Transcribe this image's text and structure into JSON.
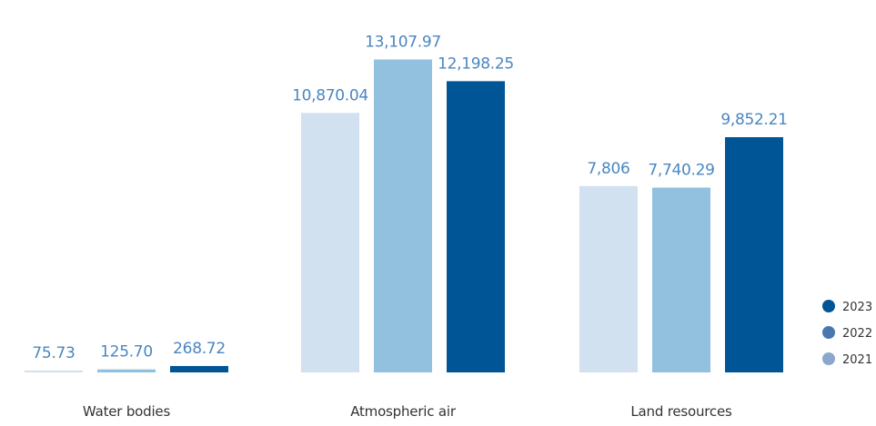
{
  "chart_data": {
    "type": "bar",
    "title": "",
    "xlabel": "",
    "ylabel": "",
    "categories": [
      "Water bodies",
      "Atmospheric air",
      "Land resources"
    ],
    "series": [
      {
        "name": "2021",
        "color": "#d1e1ef",
        "values": [
          75.73,
          10870.04,
          7806
        ],
        "labels": [
          "75.73",
          "10,870.04",
          "7,806"
        ]
      },
      {
        "name": "2022",
        "color": "#91c1de",
        "values": [
          125.7,
          13107.97,
          7740.29
        ],
        "labels": [
          "125.70",
          "13,107.97",
          "7,740.29"
        ]
      },
      {
        "name": "2023",
        "color": "#005597",
        "values": [
          268.72,
          12198.25,
          9852.21
        ],
        "labels": [
          "268.72",
          "12,198.25",
          "9,852.21"
        ]
      }
    ],
    "ylim": [
      0,
      14000
    ],
    "grid": false,
    "value_label_color": "#4a86c0",
    "legend": {
      "position": "right",
      "entries": [
        {
          "label": "2023",
          "color": "#005597"
        },
        {
          "label": "2022",
          "color": "#4a77b0"
        },
        {
          "label": "2021",
          "color": "#8aa8cc"
        }
      ]
    }
  }
}
